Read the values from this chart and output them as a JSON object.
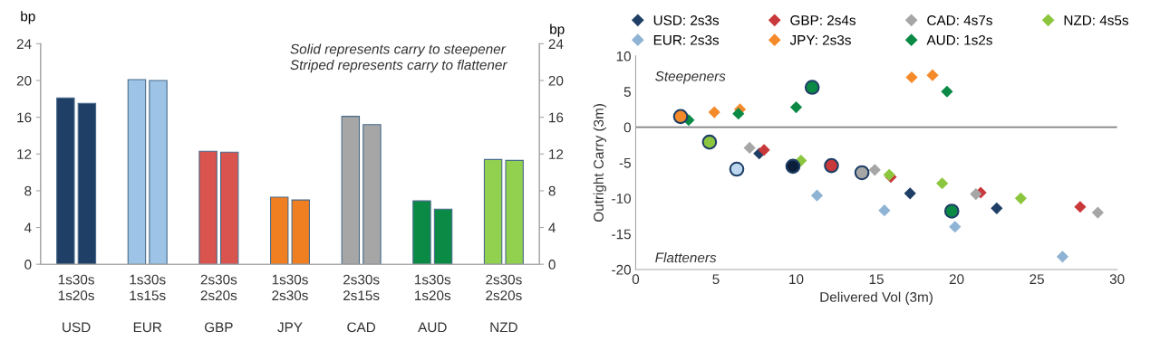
{
  "chart_data": [
    {
      "type": "bar",
      "ylabel": "bp",
      "y2label": "bp",
      "categories": [
        "1s30s\n1s20s\n\nUSD",
        "1s30s\n1s15s\n\nEUR",
        "2s30s\n2s20s\n\nGBP",
        "1s30s\n2s30s\n\nJPY",
        "2s30s\n2s15s\n\nCAD",
        "1s30s\n1s20s\n\nAUD",
        "2s30s\n2s20s\n\nNZD"
      ],
      "series": [
        {
          "values": [
            18.1,
            20.1,
            12.3,
            7.3,
            16.1,
            6.9,
            11.4
          ],
          "colors": [
            "#1f3f66",
            "#9dc3e6",
            "#d9534f",
            "#f07f22",
            "#a6a6a6",
            "#0b8a45",
            "#92d050"
          ]
        },
        {
          "values": [
            17.5,
            20.0,
            12.2,
            7.0,
            15.2,
            6.0,
            11.3
          ],
          "colors": [
            "#1f3f66",
            "#9dc3e6",
            "#d9534f",
            "#f07f22",
            "#a6a6a6",
            "#0b8a45",
            "#92d050"
          ]
        }
      ],
      "ylim": [
        0,
        24
      ],
      "yticks": [
        0,
        4,
        8,
        12,
        16,
        20,
        24
      ],
      "y2lim": [
        0,
        24
      ],
      "y2ticks": [
        0,
        4,
        8,
        12,
        16,
        20,
        24
      ],
      "annotations": [
        "Solid represents carry to steepener\nStriped represents carry to flattener"
      ],
      "grid": false
    },
    {
      "type": "scatter",
      "xlabel": "Delivered Vol (3m)",
      "ylabel": "Outright Carry (3m)",
      "series": [
        {
          "name": "USD: 2s3s",
          "color": "#1f3f66",
          "marker": "diamond",
          "x": [
            7.7,
            17.1,
            22.5
          ],
          "values": [
            -3.7,
            -9.3,
            -11.4
          ]
        },
        {
          "name": "EUR: 2s3s",
          "color": "#8fb3d4",
          "marker": "diamond",
          "x": [
            11.3,
            15.5,
            19.9,
            26.6
          ],
          "values": [
            -9.6,
            -11.7,
            -14.0,
            -18.2
          ]
        },
        {
          "name": "GBP: 2s4s",
          "color": "#c9383a",
          "marker": "diamond",
          "x": [
            8.0,
            15.9,
            21.5,
            27.7
          ],
          "values": [
            -3.2,
            -7.0,
            -9.2,
            -11.2
          ]
        },
        {
          "name": "JPY: 2s3s",
          "color": "#f58a2a",
          "marker": "diamond",
          "x": [
            4.9,
            6.5,
            17.2,
            18.5
          ],
          "values": [
            2.1,
            2.5,
            7.0,
            7.3
          ]
        },
        {
          "name": "CAD: 4s7s",
          "color": "#a6a6a6",
          "marker": "diamond",
          "x": [
            7.1,
            14.9,
            21.2,
            28.8
          ],
          "values": [
            -2.9,
            -6.0,
            -9.4,
            -12.0
          ]
        },
        {
          "name": "AUD: 1s2s",
          "color": "#0b8a45",
          "marker": "diamond",
          "x": [
            3.3,
            6.4,
            10.0,
            19.4
          ],
          "values": [
            1.0,
            1.9,
            2.8,
            5.0
          ]
        },
        {
          "name": "NZD: 4s5s",
          "color": "#8cc63f",
          "marker": "diamond",
          "x": [
            10.3,
            15.8,
            19.1,
            24.0
          ],
          "values": [
            -4.7,
            -6.7,
            -7.9,
            -10.0
          ]
        },
        {
          "color": "#0b1f3a",
          "marker": "circle",
          "x": [
            9.8
          ],
          "values": [
            -5.5
          ]
        },
        {
          "color": "#bcd7ef",
          "marker": "circle",
          "x": [
            6.3
          ],
          "values": [
            -5.9
          ]
        },
        {
          "color": "#c9383a",
          "marker": "circle",
          "x": [
            12.2
          ],
          "values": [
            -5.4
          ]
        },
        {
          "color": "#f58a2a",
          "marker": "circle",
          "x": [
            2.8
          ],
          "values": [
            1.5
          ]
        },
        {
          "color": "#a6a6a6",
          "marker": "circle",
          "x": [
            14.1
          ],
          "values": [
            -6.4
          ]
        },
        {
          "color": "#0b8a45",
          "marker": "circle",
          "x": [
            11.0,
            19.7
          ],
          "values": [
            5.6,
            -11.8
          ]
        },
        {
          "color": "#8cc63f",
          "marker": "circle",
          "x": [
            4.6
          ],
          "values": [
            -2.1
          ]
        }
      ],
      "xlim": [
        0,
        30
      ],
      "xticks": [
        0,
        5,
        10,
        15,
        20,
        25,
        30
      ],
      "ylim": [
        -20,
        10
      ],
      "yticks": [
        -20,
        -15,
        -10,
        -5,
        0,
        5,
        10
      ],
      "ref_lines": [
        {
          "axis": "y",
          "value": 0,
          "color": "#808080"
        }
      ],
      "annotations": [
        "Steepeners",
        "Flatteners"
      ],
      "grid": false,
      "legend": "top"
    }
  ]
}
